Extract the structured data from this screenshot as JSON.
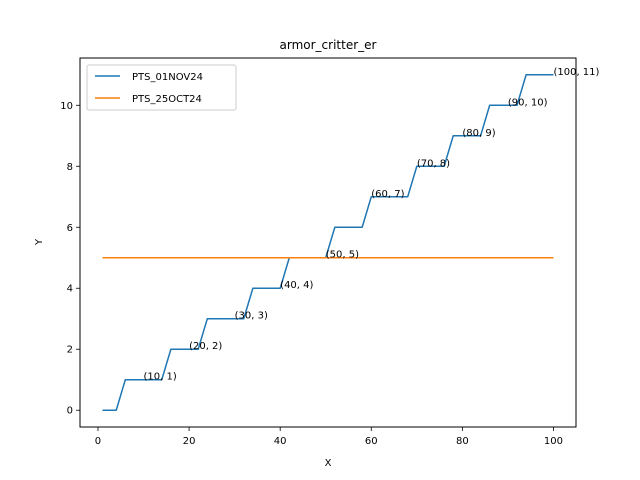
{
  "chart_data": {
    "type": "line",
    "title": "armor_critter_er",
    "xlabel": "X",
    "ylabel": "Y",
    "xlim": [
      -3.95,
      104.95
    ],
    "ylim": [
      -0.55,
      11.55
    ],
    "xticks": [
      0,
      20,
      40,
      60,
      80,
      100
    ],
    "yticks": [
      0,
      2,
      4,
      6,
      8,
      10
    ],
    "legend_position": "upper-left",
    "series": [
      {
        "name": "PTS_01NOV24",
        "color": "#1f77b4",
        "x": [
          1,
          4,
          6,
          14,
          16,
          22,
          24,
          32,
          34,
          40,
          42,
          50,
          52,
          58,
          60,
          68,
          70,
          76,
          78,
          84,
          86,
          92,
          94,
          100
        ],
        "y": [
          0,
          0,
          1,
          1,
          2,
          2,
          3,
          3,
          4,
          4,
          5,
          5,
          6,
          6,
          7,
          7,
          8,
          8,
          9,
          9,
          10,
          10,
          11,
          11
        ]
      },
      {
        "name": "PTS_25OCT24",
        "color": "#ff7f0e",
        "x": [
          1,
          100
        ],
        "y": [
          5,
          5
        ]
      }
    ],
    "annotations": [
      {
        "text": "(10, 1)",
        "x": 10,
        "y": 1
      },
      {
        "text": "(20, 2)",
        "x": 20,
        "y": 2
      },
      {
        "text": "(30, 3)",
        "x": 30,
        "y": 3
      },
      {
        "text": "(40, 4)",
        "x": 40,
        "y": 4
      },
      {
        "text": "(50, 5)",
        "x": 50,
        "y": 5
      },
      {
        "text": "(60, 7)",
        "x": 60,
        "y": 7
      },
      {
        "text": "(70, 8)",
        "x": 70,
        "y": 8
      },
      {
        "text": "(80, 9)",
        "x": 80,
        "y": 9
      },
      {
        "text": "(90, 10)",
        "x": 90,
        "y": 10
      },
      {
        "text": "(100, 11)",
        "x": 100,
        "y": 11
      }
    ]
  }
}
